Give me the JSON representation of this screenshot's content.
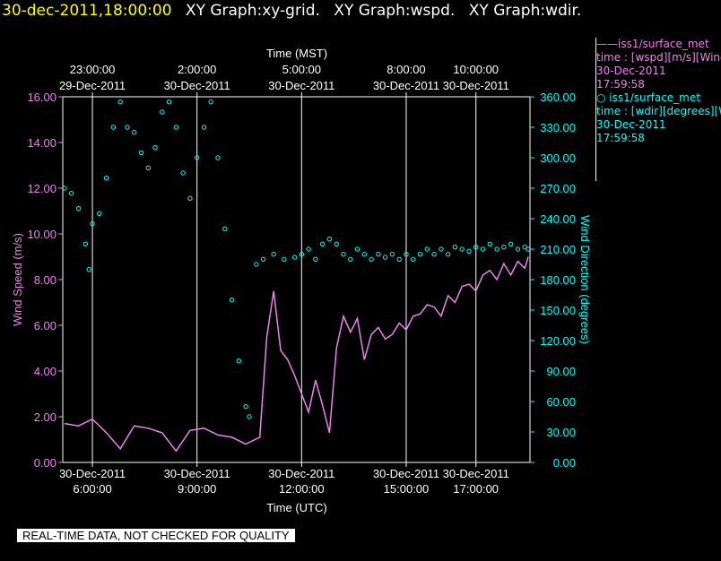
{
  "header": {
    "timestamp": "30-dec-2011,18:00:00",
    "graphs": [
      "XY Graph:xy-grid.",
      "XY Graph:wspd.",
      "XY Graph:wdir."
    ]
  },
  "legend": {
    "series1_title": "——iss1/surface_met",
    "series1_var": "time : [wspd][m/s][Wind",
    "series1_date": "30-Dec-2011",
    "series1_time": "17:59:58",
    "series2_title": "○ iss1/surface_met",
    "series2_var": "time : [wdir][degrees][W",
    "series2_date": "30-Dec-2011",
    "series2_time": "17:59:58"
  },
  "banner": "REAL-TIME DATA, NOT CHECKED FOR QUALITY",
  "colors": {
    "background": "#000000",
    "wspd": "#ee82ee",
    "wdir": "#00ffff",
    "grid": "#ffffff",
    "header_ts": "#ffff00"
  },
  "chart_data": {
    "type": "line",
    "x_unit": "hours UTC, 30-Dec-2011",
    "xlim": [
      5.15,
      18.55
    ],
    "top_axis": {
      "label": "Time (MST)",
      "ticks": [
        {
          "x": 6.0,
          "time": "23:00:00",
          "date": "29-Dec-2011"
        },
        {
          "x": 9.0,
          "time": "2:00:00",
          "date": "30-Dec-2011"
        },
        {
          "x": 12.0,
          "time": "5:00:00",
          "date": "30-Dec-2011"
        },
        {
          "x": 15.0,
          "time": "8:00:00",
          "date": "30-Dec-2011"
        },
        {
          "x": 17.0,
          "time": "10:00:00",
          "date": "30-Dec-2011"
        }
      ]
    },
    "bottom_axis": {
      "label": "Time (UTC)",
      "ticks": [
        {
          "x": 6.0,
          "date": "30-Dec-2011",
          "time": "6:00:00"
        },
        {
          "x": 9.0,
          "date": "30-Dec-2011",
          "time": "9:00:00"
        },
        {
          "x": 12.0,
          "date": "30-Dec-2011",
          "time": "12:00:00"
        },
        {
          "x": 15.0,
          "date": "30-Dec-2011",
          "time": "15:00:00"
        },
        {
          "x": 17.0,
          "date": "30-Dec-2011",
          "time": "17:00:00"
        }
      ]
    },
    "left_axis": {
      "label": "Wind Speed (m/s)",
      "ylim": [
        0,
        16
      ],
      "ticks": [
        "0.00",
        "2.00",
        "4.00",
        "6.00",
        "8.00",
        "10.00",
        "12.00",
        "14.00",
        "16.00"
      ]
    },
    "right_axis": {
      "label": "Wind Direction (degrees)",
      "ylim": [
        0,
        360
      ],
      "ticks": [
        "0.00",
        "30.00",
        "60.00",
        "90.00",
        "120.00",
        "150.00",
        "180.00",
        "210.00",
        "240.00",
        "270.00",
        "300.00",
        "330.00",
        "360.00"
      ]
    },
    "grid": true,
    "series": [
      {
        "name": "iss1/surface_met wspd",
        "axis": "left",
        "style": "line",
        "color": "#ee82ee",
        "points": [
          [
            5.2,
            1.7
          ],
          [
            5.6,
            1.6
          ],
          [
            6.0,
            1.9
          ],
          [
            6.4,
            1.3
          ],
          [
            6.8,
            0.6
          ],
          [
            7.2,
            1.6
          ],
          [
            7.6,
            1.5
          ],
          [
            8.0,
            1.3
          ],
          [
            8.4,
            0.5
          ],
          [
            8.8,
            1.4
          ],
          [
            9.2,
            1.5
          ],
          [
            9.6,
            1.2
          ],
          [
            10.0,
            1.1
          ],
          [
            10.4,
            0.8
          ],
          [
            10.8,
            1.1
          ],
          [
            11.0,
            5.5
          ],
          [
            11.2,
            7.5
          ],
          [
            11.4,
            4.9
          ],
          [
            11.6,
            4.5
          ],
          [
            11.8,
            3.8
          ],
          [
            12.0,
            3.0
          ],
          [
            12.2,
            2.2
          ],
          [
            12.4,
            3.6
          ],
          [
            12.6,
            2.5
          ],
          [
            12.8,
            1.3
          ],
          [
            13.0,
            5.0
          ],
          [
            13.2,
            6.4
          ],
          [
            13.4,
            5.7
          ],
          [
            13.6,
            6.3
          ],
          [
            13.8,
            4.5
          ],
          [
            14.0,
            5.6
          ],
          [
            14.2,
            5.9
          ],
          [
            14.4,
            5.4
          ],
          [
            14.6,
            5.6
          ],
          [
            14.8,
            6.1
          ],
          [
            15.0,
            5.8
          ],
          [
            15.2,
            6.4
          ],
          [
            15.4,
            6.5
          ],
          [
            15.6,
            6.9
          ],
          [
            15.8,
            6.8
          ],
          [
            16.0,
            6.4
          ],
          [
            16.2,
            7.3
          ],
          [
            16.4,
            7.0
          ],
          [
            16.6,
            7.7
          ],
          [
            16.8,
            7.8
          ],
          [
            17.0,
            7.5
          ],
          [
            17.2,
            8.2
          ],
          [
            17.4,
            8.4
          ],
          [
            17.6,
            8.0
          ],
          [
            17.8,
            8.7
          ],
          [
            18.0,
            8.2
          ],
          [
            18.2,
            8.8
          ],
          [
            18.4,
            8.5
          ],
          [
            18.5,
            9.0
          ]
        ]
      },
      {
        "name": "iss1/surface_met wdir",
        "axis": "right",
        "style": "scatter",
        "color": "#00ffff",
        "points": [
          [
            5.2,
            270
          ],
          [
            5.4,
            265
          ],
          [
            5.6,
            250
          ],
          [
            5.8,
            215
          ],
          [
            5.9,
            190
          ],
          [
            6.0,
            235
          ],
          [
            6.2,
            245
          ],
          [
            6.4,
            280
          ],
          [
            6.6,
            330
          ],
          [
            6.8,
            355
          ],
          [
            7.0,
            330
          ],
          [
            7.2,
            325
          ],
          [
            7.4,
            305
          ],
          [
            7.6,
            290
          ],
          [
            7.8,
            310
          ],
          [
            8.0,
            345
          ],
          [
            8.2,
            355
          ],
          [
            8.4,
            330
          ],
          [
            8.6,
            285
          ],
          [
            8.8,
            260
          ],
          [
            9.0,
            300
          ],
          [
            9.2,
            330
          ],
          [
            9.4,
            355
          ],
          [
            9.6,
            300
          ],
          [
            9.8,
            230
          ],
          [
            10.0,
            160
          ],
          [
            10.2,
            100
          ],
          [
            10.4,
            55
          ],
          [
            10.5,
            45
          ],
          [
            10.7,
            195
          ],
          [
            10.9,
            200
          ],
          [
            11.2,
            205
          ],
          [
            11.5,
            200
          ],
          [
            11.8,
            202
          ],
          [
            12.0,
            205
          ],
          [
            12.2,
            210
          ],
          [
            12.4,
            200
          ],
          [
            12.6,
            215
          ],
          [
            12.8,
            220
          ],
          [
            13.0,
            215
          ],
          [
            13.2,
            205
          ],
          [
            13.4,
            200
          ],
          [
            13.6,
            210
          ],
          [
            13.8,
            205
          ],
          [
            14.0,
            200
          ],
          [
            14.2,
            205
          ],
          [
            14.4,
            202
          ],
          [
            14.6,
            205
          ],
          [
            14.8,
            200
          ],
          [
            15.0,
            205
          ],
          [
            15.2,
            200
          ],
          [
            15.4,
            205
          ],
          [
            15.6,
            210
          ],
          [
            15.8,
            205
          ],
          [
            16.0,
            210
          ],
          [
            16.2,
            205
          ],
          [
            16.4,
            212
          ],
          [
            16.6,
            210
          ],
          [
            16.8,
            208
          ],
          [
            17.0,
            212
          ],
          [
            17.2,
            210
          ],
          [
            17.4,
            215
          ],
          [
            17.6,
            210
          ],
          [
            17.8,
            212
          ],
          [
            18.0,
            215
          ],
          [
            18.2,
            210
          ],
          [
            18.4,
            212
          ],
          [
            18.5,
            210
          ]
        ]
      }
    ]
  }
}
